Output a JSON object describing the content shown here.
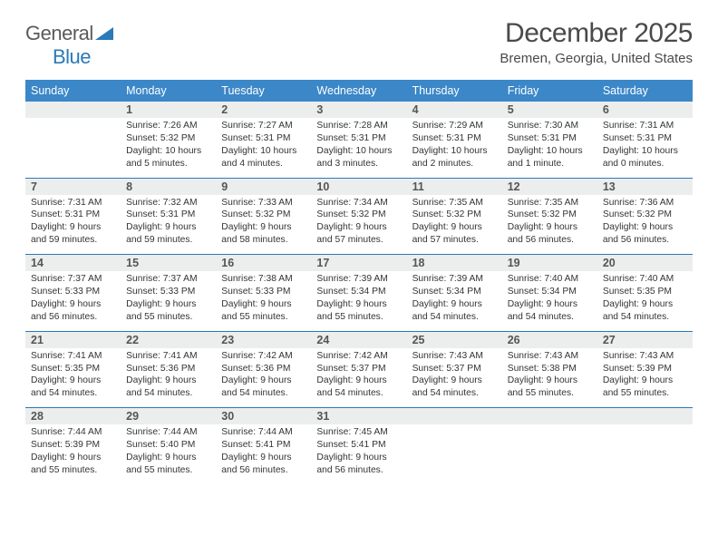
{
  "logo": {
    "textA": "General",
    "textB": "Blue"
  },
  "title": "December 2025",
  "subtitle": "Bremen, Georgia, United States",
  "headerColor": "#3b87c8",
  "borderColor": "#2a7ab9",
  "dayBgColor": "#eceded",
  "dayNames": [
    "Sunday",
    "Monday",
    "Tuesday",
    "Wednesday",
    "Thursday",
    "Friday",
    "Saturday"
  ],
  "weeks": [
    {
      "nums": [
        "",
        "1",
        "2",
        "3",
        "4",
        "5",
        "6"
      ],
      "cells": [
        "",
        "Sunrise: 7:26 AM\nSunset: 5:32 PM\nDaylight: 10 hours and 5 minutes.",
        "Sunrise: 7:27 AM\nSunset: 5:31 PM\nDaylight: 10 hours and 4 minutes.",
        "Sunrise: 7:28 AM\nSunset: 5:31 PM\nDaylight: 10 hours and 3 minutes.",
        "Sunrise: 7:29 AM\nSunset: 5:31 PM\nDaylight: 10 hours and 2 minutes.",
        "Sunrise: 7:30 AM\nSunset: 5:31 PM\nDaylight: 10 hours and 1 minute.",
        "Sunrise: 7:31 AM\nSunset: 5:31 PM\nDaylight: 10 hours and 0 minutes."
      ]
    },
    {
      "nums": [
        "7",
        "8",
        "9",
        "10",
        "11",
        "12",
        "13"
      ],
      "cells": [
        "Sunrise: 7:31 AM\nSunset: 5:31 PM\nDaylight: 9 hours and 59 minutes.",
        "Sunrise: 7:32 AM\nSunset: 5:31 PM\nDaylight: 9 hours and 59 minutes.",
        "Sunrise: 7:33 AM\nSunset: 5:32 PM\nDaylight: 9 hours and 58 minutes.",
        "Sunrise: 7:34 AM\nSunset: 5:32 PM\nDaylight: 9 hours and 57 minutes.",
        "Sunrise: 7:35 AM\nSunset: 5:32 PM\nDaylight: 9 hours and 57 minutes.",
        "Sunrise: 7:35 AM\nSunset: 5:32 PM\nDaylight: 9 hours and 56 minutes.",
        "Sunrise: 7:36 AM\nSunset: 5:32 PM\nDaylight: 9 hours and 56 minutes."
      ]
    },
    {
      "nums": [
        "14",
        "15",
        "16",
        "17",
        "18",
        "19",
        "20"
      ],
      "cells": [
        "Sunrise: 7:37 AM\nSunset: 5:33 PM\nDaylight: 9 hours and 56 minutes.",
        "Sunrise: 7:37 AM\nSunset: 5:33 PM\nDaylight: 9 hours and 55 minutes.",
        "Sunrise: 7:38 AM\nSunset: 5:33 PM\nDaylight: 9 hours and 55 minutes.",
        "Sunrise: 7:39 AM\nSunset: 5:34 PM\nDaylight: 9 hours and 55 minutes.",
        "Sunrise: 7:39 AM\nSunset: 5:34 PM\nDaylight: 9 hours and 54 minutes.",
        "Sunrise: 7:40 AM\nSunset: 5:34 PM\nDaylight: 9 hours and 54 minutes.",
        "Sunrise: 7:40 AM\nSunset: 5:35 PM\nDaylight: 9 hours and 54 minutes."
      ]
    },
    {
      "nums": [
        "21",
        "22",
        "23",
        "24",
        "25",
        "26",
        "27"
      ],
      "cells": [
        "Sunrise: 7:41 AM\nSunset: 5:35 PM\nDaylight: 9 hours and 54 minutes.",
        "Sunrise: 7:41 AM\nSunset: 5:36 PM\nDaylight: 9 hours and 54 minutes.",
        "Sunrise: 7:42 AM\nSunset: 5:36 PM\nDaylight: 9 hours and 54 minutes.",
        "Sunrise: 7:42 AM\nSunset: 5:37 PM\nDaylight: 9 hours and 54 minutes.",
        "Sunrise: 7:43 AM\nSunset: 5:37 PM\nDaylight: 9 hours and 54 minutes.",
        "Sunrise: 7:43 AM\nSunset: 5:38 PM\nDaylight: 9 hours and 55 minutes.",
        "Sunrise: 7:43 AM\nSunset: 5:39 PM\nDaylight: 9 hours and 55 minutes."
      ]
    },
    {
      "nums": [
        "28",
        "29",
        "30",
        "31",
        "",
        "",
        ""
      ],
      "cells": [
        "Sunrise: 7:44 AM\nSunset: 5:39 PM\nDaylight: 9 hours and 55 minutes.",
        "Sunrise: 7:44 AM\nSunset: 5:40 PM\nDaylight: 9 hours and 55 minutes.",
        "Sunrise: 7:44 AM\nSunset: 5:41 PM\nDaylight: 9 hours and 56 minutes.",
        "Sunrise: 7:45 AM\nSunset: 5:41 PM\nDaylight: 9 hours and 56 minutes.",
        "",
        "",
        ""
      ]
    }
  ]
}
